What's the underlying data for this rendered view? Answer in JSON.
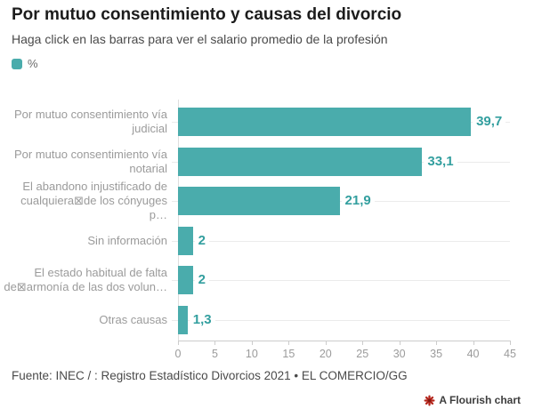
{
  "title": "Por mutuo consentimiento y causas del divorcio",
  "subtitle": "Haga click en las barras para ver el salario promedio de la profesión",
  "legend": {
    "label": "%",
    "swatch_color": "#4aacac"
  },
  "chart_data": {
    "type": "bar",
    "orientation": "horizontal",
    "title": "Por mutuo consentimiento y causas del divorcio",
    "series_name": "%",
    "categories": [
      "Por mutuo consentimiento vía judicial",
      "Por mutuo consentimiento vía notarial",
      "El abandono injustificado de cualquiera⊠de los cónyuges p…",
      "Sin información",
      "El estado habitual de falta de⊠armonía de las dos volun…",
      "Otras causas"
    ],
    "values": [
      39.7,
      33.1,
      21.9,
      2,
      2,
      1.3
    ],
    "value_labels": [
      "39,7",
      "33,1",
      "21,9",
      "2",
      "2",
      "1,3"
    ],
    "xlim": [
      0,
      45
    ],
    "x_ticks": [
      0,
      5,
      10,
      15,
      20,
      25,
      30,
      35,
      40,
      45
    ],
    "bar_color": "#4aacac",
    "value_label_color": "#339f9f",
    "grid": "light row lines, vertical baseline at 0",
    "legend_position": "top-left"
  },
  "footer": {
    "source": "Fuente: INEC / : Registro Estadístico Divorcios 2021 • EL COMERCIO/GG"
  },
  "attribution": {
    "label": "A Flourish chart",
    "icon": "flourish-flower-icon",
    "icon_color": "#b5271d"
  }
}
